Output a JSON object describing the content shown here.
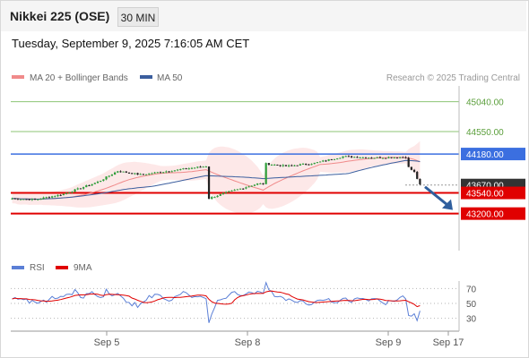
{
  "header": {
    "title": "Nikkei 225 (OSE)",
    "interval": "30 MIN"
  },
  "timestamp": "Tuesday, September 9, 2025 7:16:05 AM CET",
  "legend": {
    "ma20_label": "MA 20 + Bollinger Bands",
    "ma50_label": "MA 50",
    "copyright": "Research © 2025 Trading Central"
  },
  "rsi_legend": {
    "rsi_label": "RSI",
    "ma_label": "9MA"
  },
  "colors": {
    "bull": "#2e9e3a",
    "bear": "#222222",
    "ma20": "#f08a8a",
    "ma50": "#3b5e9e",
    "band": "#fde4e4",
    "resistance": "#8cc474",
    "pivot": "#3b6fe0",
    "support": "#e00000",
    "arrow": "#2f5f9e",
    "rsi": "#5b7fd6",
    "rsi_ma": "#e00000",
    "current_price_tag": "#333333"
  },
  "chart_data": [
    {
      "type": "line",
      "title": "",
      "x_ticks": [
        "Sep 5",
        "Sep 8",
        "Sep 9",
        "Sep 17"
      ],
      "ylim": [
        42650,
        45300
      ],
      "grid": false,
      "legend_position": "top-left",
      "price_series_summary": {
        "start": 43450,
        "sep5_high": 43900,
        "sep8_open_gap_low": 43450,
        "sep8_high": 43690,
        "sep9_high": 44100,
        "last": 43670
      },
      "levels": [
        {
          "label": "45040.00",
          "value": 45040,
          "role": "resistance"
        },
        {
          "label": "44550.00",
          "value": 44550,
          "role": "resistance"
        },
        {
          "label": "44180.00",
          "value": 44180,
          "role": "pivot"
        },
        {
          "label": "43670.00",
          "value": 43670,
          "role": "current"
        },
        {
          "label": "43540.00",
          "value": 43540,
          "role": "support"
        },
        {
          "label": "43200.00",
          "value": 43200,
          "role": "support"
        }
      ],
      "series": [
        {
          "name": "MA 20 + Bollinger Bands"
        },
        {
          "name": "MA 50"
        }
      ],
      "forecast_arrow": {
        "direction": "down",
        "from": 43640,
        "to": 43260
      }
    },
    {
      "type": "line",
      "title": "",
      "yticks": [
        70,
        50,
        30
      ],
      "ylim": [
        20,
        80
      ],
      "series": [
        {
          "name": "RSI"
        },
        {
          "name": "9MA"
        }
      ],
      "last_values": {
        "RSI": 40,
        "9MA": 47
      }
    }
  ]
}
